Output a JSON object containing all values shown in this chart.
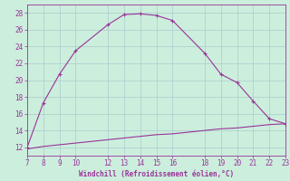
{
  "xlabel": "Windchill (Refroidissement éolien,°C)",
  "bg_color": "#cceedd",
  "line_color": "#993399",
  "grid_color": "#aacccc",
  "xmin": 7,
  "xmax": 23,
  "ymin": 11,
  "ymax": 29,
  "xticks": [
    7,
    8,
    9,
    10,
    12,
    13,
    14,
    15,
    16,
    18,
    19,
    20,
    21,
    22,
    23
  ],
  "yticks": [
    12,
    14,
    16,
    18,
    20,
    22,
    24,
    26,
    28
  ],
  "curve1_x": [
    7,
    8,
    9,
    10,
    12,
    13,
    14,
    15,
    16,
    18,
    19,
    20,
    21,
    22,
    23
  ],
  "curve1_y": [
    12,
    17.3,
    20.7,
    23.5,
    26.6,
    27.8,
    27.9,
    27.7,
    27.1,
    23.2,
    20.7,
    19.7,
    17.5,
    15.4,
    14.8
  ],
  "curve2_x": [
    7,
    8,
    9,
    10,
    11,
    12,
    13,
    14,
    15,
    16,
    17,
    18,
    19,
    20,
    21,
    22,
    23
  ],
  "curve2_y": [
    11.8,
    12.1,
    12.3,
    12.5,
    12.7,
    12.9,
    13.1,
    13.3,
    13.5,
    13.6,
    13.8,
    14.0,
    14.2,
    14.3,
    14.5,
    14.7,
    14.8
  ]
}
